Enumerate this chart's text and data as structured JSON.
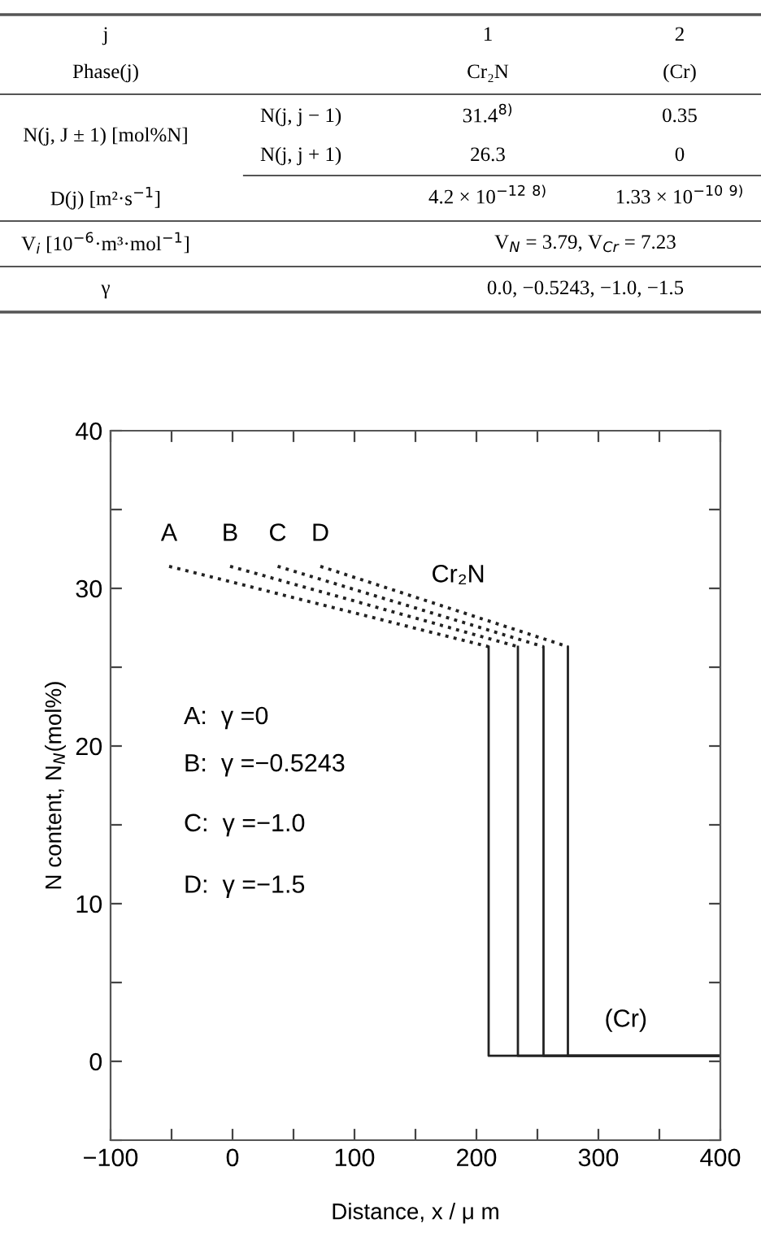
{
  "chart_data": {
    "type": "line",
    "xlabel": "Distance, x / μ m",
    "ylabel": "N content, N$_{N}$(mol%)",
    "xlim": [
      -100,
      400
    ],
    "ylim": [
      -5,
      40
    ],
    "xticks": [
      -100,
      {
        "value": -50,
        "label": null
      },
      0,
      {
        "value": 50,
        "label": null
      },
      100,
      {
        "value": 150,
        "label": null
      },
      200,
      {
        "value": 250,
        "label": null
      },
      300,
      {
        "value": 350,
        "label": null
      },
      400
    ],
    "yticks": [
      {
        "value": -5,
        "label": null
      },
      0,
      {
        "value": 5,
        "label": null
      },
      10,
      {
        "value": 15,
        "label": null
      },
      20,
      {
        "value": 25,
        "label": null
      },
      30,
      {
        "value": 35,
        "label": null
      },
      40
    ],
    "grid": false,
    "legend": false,
    "marker": "none",
    "series": [
      {
        "line_style": "dotted",
        "color": "#222222",
        "x": [
          -52,
          210
        ],
        "values": [
          31.4,
          26.3
        ]
      },
      {
        "line_style": "solid",
        "color": "#222222",
        "x": [
          210,
          210,
          400
        ],
        "values": [
          26.3,
          0.35,
          0.35
        ]
      },
      {
        "line_style": "dotted",
        "color": "#222222",
        "x": [
          -2,
          234
        ],
        "values": [
          31.4,
          26.3
        ]
      },
      {
        "line_style": "solid",
        "color": "#222222",
        "x": [
          234,
          234,
          400
        ],
        "values": [
          26.3,
          0.35,
          0.35
        ]
      },
      {
        "line_style": "dotted",
        "color": "#222222",
        "x": [
          37,
          255
        ],
        "values": [
          31.4,
          26.3
        ]
      },
      {
        "line_style": "solid",
        "color": "#222222",
        "x": [
          255,
          255,
          400
        ],
        "values": [
          26.3,
          0.35,
          0.35
        ]
      },
      {
        "line_style": "dotted",
        "color": "#222222",
        "x": [
          72,
          275
        ],
        "values": [
          31.4,
          26.3
        ]
      },
      {
        "line_style": "solid",
        "color": "#222222",
        "x": [
          275,
          275,
          400
        ],
        "values": [
          26.3,
          0.35,
          0.35
        ]
      }
    ],
    "annotations": [
      "j",
      "Phase(j)",
      "1",
      "Cr₂N",
      "2",
      "(Cr)",
      "N(j, J ± 1) [mol%N]",
      "N(j, j − 1)",
      "31.4$^{8)}$",
      "0.35",
      "N(j, j + 1)",
      "26.3",
      "0",
      "D(j) [m²·s$^{−1}$]",
      "4.2 × 10$^{−12}$ $^{8)}$",
      "1.33 × 10$^{−10}$ $^{9)}$",
      "V$_{i}$ [10$^{−6}$·m³·mol$^{−1}$]",
      "V$_{N}$ = 3.79, V$_{Cr}$ = 7.23",
      "γ",
      "0.0, −0.5243, −1.0, −1.5",
      "A:  γ =0",
      "B:  γ =−0.5243",
      "C:  γ =−1.0",
      "D:  γ =−1.5",
      "Cr₂N",
      "(Cr)",
      {
        "text": "A",
        "x": -52,
        "y": 31.4
      },
      {
        "text": "B",
        "x": -2,
        "y": 31.4
      },
      {
        "text": "C",
        "x": 37,
        "y": 31.4
      },
      {
        "text": "D",
        "x": 72,
        "y": 31.4
      }
    ]
  }
}
